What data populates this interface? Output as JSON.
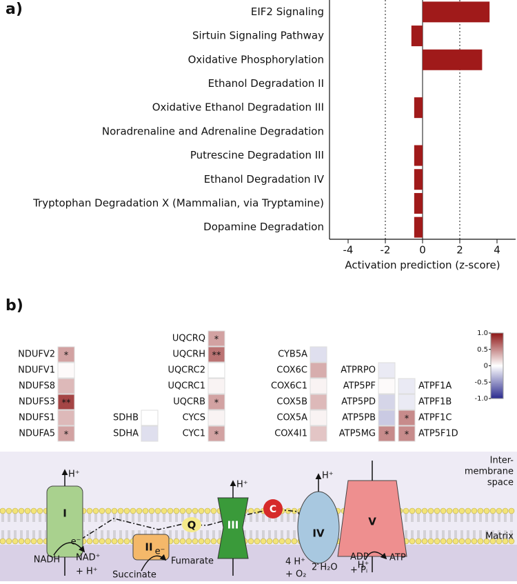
{
  "chart_data": [
    {
      "type": "bar",
      "orientation": "horizontal",
      "panel_label": "a)",
      "categories": [
        "EIF2 Signaling",
        "Sirtuin Signaling Pathway",
        "Oxidative Phosphorylation",
        "Ethanol Degradation II",
        "Oxidative Ethanol Degradation III",
        "Noradrenaline and Adrenaline Degradation",
        "Putrescine Degradation III",
        "Ethanol Degradation IV",
        "Tryptophan Degradation X (Mammalian, via Tryptamine)",
        "Dopamine Degradation"
      ],
      "values": [
        3.6,
        -0.6,
        3.2,
        0,
        -0.45,
        0,
        -0.45,
        -0.45,
        -0.45,
        -0.45
      ],
      "color": "#a01a1a",
      "xlim": [
        -5,
        5
      ],
      "xticks": [
        -4,
        -2,
        0,
        2,
        4
      ],
      "xlabel": "Activation prediction (z-score)",
      "thresholds": [
        -2,
        2
      ]
    },
    {
      "type": "heatmap",
      "panel_label": "b)",
      "groups": [
        {
          "genes": [
            "NDUFV2",
            "NDUFV1",
            "NDUFS8",
            "NDUFS3",
            "NDUFS1",
            "NDUFA5"
          ],
          "values": [
            0.4,
            0.02,
            0.3,
            0.8,
            0.3,
            0.4
          ],
          "stars": [
            "*",
            null,
            null,
            "**",
            null,
            "*"
          ]
        },
        {
          "genes": [
            "SDHB",
            "SDHA"
          ],
          "values": [
            0,
            -0.15
          ],
          "stars": [
            null,
            null
          ]
        },
        {
          "genes": [
            "UQCRQ",
            "UQCRH",
            "UQCRC2",
            "UQCRC1",
            "UQCRB",
            "CYCS",
            "CYC1"
          ],
          "values": [
            0.4,
            0.6,
            0,
            0.05,
            0.4,
            0.05,
            0.4
          ],
          "stars": [
            "*",
            "**",
            null,
            null,
            "*",
            null,
            "*"
          ]
        },
        {
          "genes": [
            "CYB5A",
            "COX6C",
            "COX6C1",
            "COX5B",
            "COX5A",
            "COX4I1"
          ],
          "values": [
            -0.15,
            0.35,
            0.05,
            0.3,
            0.05,
            0.25
          ],
          "stars": [
            null,
            null,
            null,
            null,
            null,
            null
          ]
        },
        {
          "genes": [
            "ATPRPO",
            "ATP5PF",
            "ATP5PD",
            "ATP5PB",
            "ATP5MG"
          ],
          "values": [
            -0.1,
            0.02,
            -0.2,
            -0.25,
            0.5
          ],
          "stars": [
            null,
            null,
            null,
            null,
            "*"
          ]
        },
        {
          "genes": [
            "ATPF1A",
            "ATPF1B",
            "ATPF1C",
            "ATP5F1D"
          ],
          "values": [
            -0.1,
            -0.1,
            0.5,
            0.5
          ],
          "stars": [
            null,
            null,
            "*",
            "*"
          ]
        }
      ],
      "colorbar": {
        "lim": [
          -1,
          1
        ],
        "ticks": [
          {
            "value": 1,
            "label": "1.0"
          },
          0.5,
          0,
          -0.5,
          {
            "value": -1,
            "label": "-1.0"
          }
        ],
        "colors": [
          "#2b2b8e",
          "#ffffff",
          "#8e1616"
        ]
      }
    }
  ],
  "diagram": {
    "intermembrane_label": [
      "Inter-",
      "membrane",
      "space"
    ],
    "matrix_label": "Matrix",
    "complexes": [
      "I",
      "II",
      "III",
      "IV",
      "V"
    ],
    "quinone": "Q",
    "cytochrome_c": "C",
    "electron": "e⁻",
    "proton": "H⁺",
    "nadh": "NADH",
    "nad": [
      "NAD⁺",
      "+ H⁺"
    ],
    "succinate": "Succinate",
    "fumarate": "Fumarate",
    "oxygen": [
      "4 H⁺",
      "+ O₂"
    ],
    "water": "2 H₂O",
    "adp": [
      "ADP",
      "+ Pᵢ"
    ],
    "atp": "ATP"
  }
}
